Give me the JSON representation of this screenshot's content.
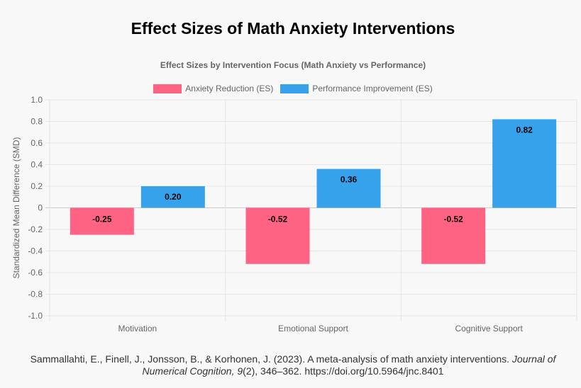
{
  "page_title": "Effect Sizes of Math Anxiety Interventions",
  "chart_data": {
    "type": "bar",
    "title": "Effect Sizes by Intervention Focus (Math Anxiety vs Performance)",
    "categories": [
      "Motivation",
      "Emotional Support",
      "Cognitive Support"
    ],
    "series": [
      {
        "name": "Anxiety Reduction (ES)",
        "color": "#ff6384",
        "values": [
          -0.25,
          -0.52,
          -0.52
        ],
        "labels": [
          "-0.25",
          "-0.52",
          "-0.52"
        ]
      },
      {
        "name": "Performance Improvement (ES)",
        "color": "#36a2eb",
        "values": [
          0.2,
          0.36,
          0.82
        ],
        "labels": [
          "0.20",
          "0.36",
          "0.82"
        ]
      }
    ],
    "ylabel": "Standardized Mean Difference (SMD)",
    "xlabel": "",
    "ylim": [
      -1.0,
      1.0
    ],
    "yticks": [
      1.0,
      0.8,
      0.6,
      0.4,
      0.2,
      0,
      -0.2,
      -0.4,
      -0.6,
      -0.8,
      -1.0
    ],
    "ytick_labels": [
      "1.0",
      "0.8",
      "0.6",
      "0.4",
      "0.2",
      "0",
      "-0.2",
      "-0.4",
      "-0.6",
      "-0.8",
      "-1.0"
    ],
    "grid": true,
    "legend": "top-center"
  },
  "citation": {
    "authors": "Sammallahti, E., Finell, J., Jonsson, B., & Korhonen, J. (2023). A meta-analysis of math anxiety interventions.",
    "journal": "Journal of Numerical Cognition,",
    "volume": "9",
    "pages": "(2), 346–362. https://doi.org/10.5964/jnc.8401"
  }
}
